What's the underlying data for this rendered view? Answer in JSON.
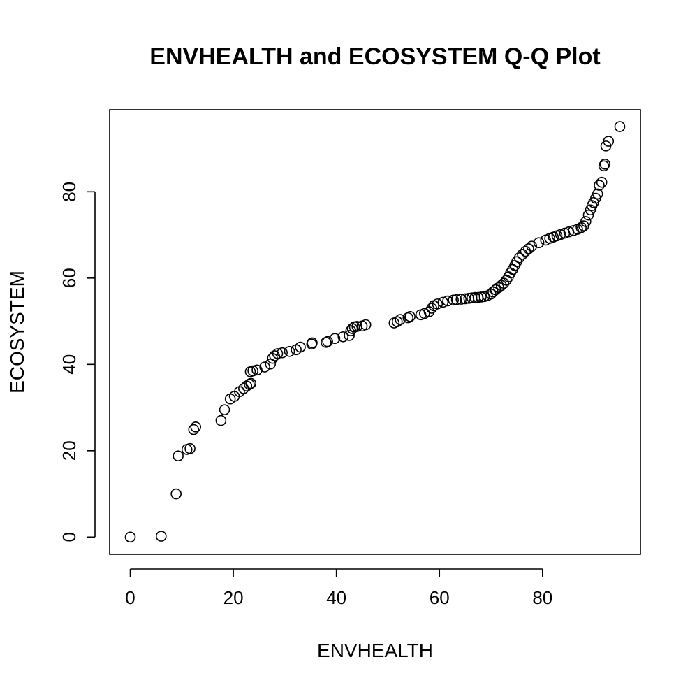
{
  "chart_data": {
    "type": "scatter",
    "title": "ENVHEALTH and ECOSYSTEM Q-Q Plot",
    "xlabel": "ENVHEALTH",
    "ylabel": "ECOSYSTEM",
    "xlim": [
      -4,
      99
    ],
    "ylim": [
      -4,
      99
    ],
    "xticks": [
      0,
      20,
      40,
      60,
      80
    ],
    "yticks": [
      0,
      20,
      40,
      60,
      80
    ],
    "grid": false,
    "marker": "open-circle",
    "point_color": "#000000",
    "x": [
      0.0,
      6.0,
      8.9,
      9.3,
      11.0,
      11.6,
      12.3,
      12.7,
      17.6,
      18.3,
      19.4,
      20.2,
      21.2,
      22.0,
      22.6,
      23.1,
      23.4,
      23.3,
      23.8,
      24.6,
      26.1,
      27.2,
      27.6,
      28.0,
      28.6,
      29.5,
      30.9,
      32.2,
      33.0,
      35.2,
      35.3,
      38.0,
      38.3,
      39.7,
      41.3,
      42.5,
      42.8,
      43.1,
      43.5,
      44.0,
      45.0,
      45.7,
      51.2,
      51.8,
      52.4,
      53.9,
      54.3,
      56.4,
      57.1,
      58.0,
      58.5,
      58.9,
      59.6,
      60.7,
      61.6,
      62.7,
      63.3,
      64.2,
      65.0,
      65.7,
      66.3,
      66.9,
      67.5,
      68.1,
      68.7,
      69.3,
      70.0,
      70.4,
      70.9,
      71.5,
      72.0,
      72.5,
      73.0,
      73.4,
      73.8,
      74.2,
      74.6,
      75.0,
      75.5,
      76.1,
      76.7,
      77.3,
      77.9,
      79.3,
      80.6,
      81.4,
      82.1,
      82.8,
      83.5,
      84.3,
      85.1,
      86.0,
      86.8,
      87.5,
      88.0,
      88.4,
      88.9,
      89.3,
      89.6,
      89.9,
      90.3,
      90.7,
      91.0,
      91.5,
      91.9,
      92.1,
      92.3,
      92.8,
      95.0
    ],
    "y": [
      0.0,
      0.2,
      10.0,
      18.8,
      20.3,
      20.5,
      24.9,
      25.5,
      27.0,
      29.5,
      32.0,
      32.6,
      33.7,
      34.4,
      35.0,
      35.4,
      35.6,
      38.3,
      38.5,
      38.7,
      39.4,
      40.1,
      41.4,
      42.0,
      42.5,
      42.7,
      43.0,
      43.4,
      44.0,
      44.7,
      45.0,
      45.1,
      45.3,
      46.0,
      46.4,
      46.7,
      47.8,
      48.3,
      48.7,
      48.8,
      48.9,
      49.2,
      49.6,
      49.9,
      50.4,
      50.8,
      51.1,
      51.5,
      51.8,
      52.2,
      53.0,
      53.6,
      54.0,
      54.4,
      54.7,
      54.9,
      55.0,
      55.1,
      55.2,
      55.3,
      55.4,
      55.5,
      55.5,
      55.6,
      55.7,
      55.9,
      56.3,
      56.8,
      57.3,
      57.8,
      58.3,
      58.8,
      59.5,
      60.3,
      61.2,
      62.0,
      62.9,
      63.8,
      64.7,
      65.5,
      66.2,
      66.8,
      67.4,
      68.2,
      68.8,
      69.2,
      69.5,
      69.8,
      70.1,
      70.4,
      70.7,
      71.0,
      71.3,
      71.7,
      72.1,
      73.1,
      74.6,
      75.8,
      76.8,
      77.5,
      78.5,
      79.5,
      81.5,
      82.2,
      86.0,
      86.4,
      90.6,
      91.7,
      95.1
    ]
  }
}
